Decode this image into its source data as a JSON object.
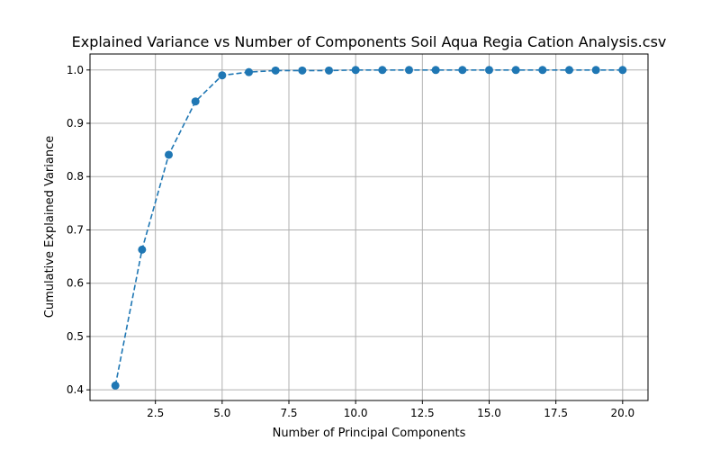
{
  "chart_data": {
    "type": "line",
    "title": "Explained Variance vs Number of Components Soil Aqua Regia Cation Analysis.csv",
    "xlabel": "Number of Principal Components",
    "ylabel": "Cumulative Explained Variance",
    "xlim": [
      0.05,
      20.95
    ],
    "ylim": [
      0.38,
      1.03
    ],
    "xticks": [
      2.5,
      5.0,
      7.5,
      10.0,
      12.5,
      15.0,
      17.5,
      20.0
    ],
    "xtick_labels": [
      "2.5",
      "5.0",
      "7.5",
      "10.0",
      "12.5",
      "15.0",
      "17.5",
      "20.0"
    ],
    "yticks": [
      0.4,
      0.5,
      0.6,
      0.7,
      0.8,
      0.9,
      1.0
    ],
    "ytick_labels": [
      "0.4",
      "0.5",
      "0.6",
      "0.7",
      "0.8",
      "0.9",
      "1.0"
    ],
    "grid": true,
    "line_style": "dashed",
    "marker": "circle",
    "color": "#1f77b4",
    "series": [
      {
        "x": [
          1,
          2,
          3,
          4,
          5,
          6,
          7,
          8,
          9,
          10,
          11,
          12,
          13,
          14,
          15,
          16,
          17,
          18,
          19,
          20
        ],
        "values": [
          0.408,
          0.663,
          0.841,
          0.941,
          0.99,
          0.996,
          0.999,
          0.999,
          0.999,
          1.0,
          1.0,
          1.0,
          1.0,
          1.0,
          1.0,
          1.0,
          1.0,
          1.0,
          1.0,
          1.0
        ]
      }
    ]
  }
}
